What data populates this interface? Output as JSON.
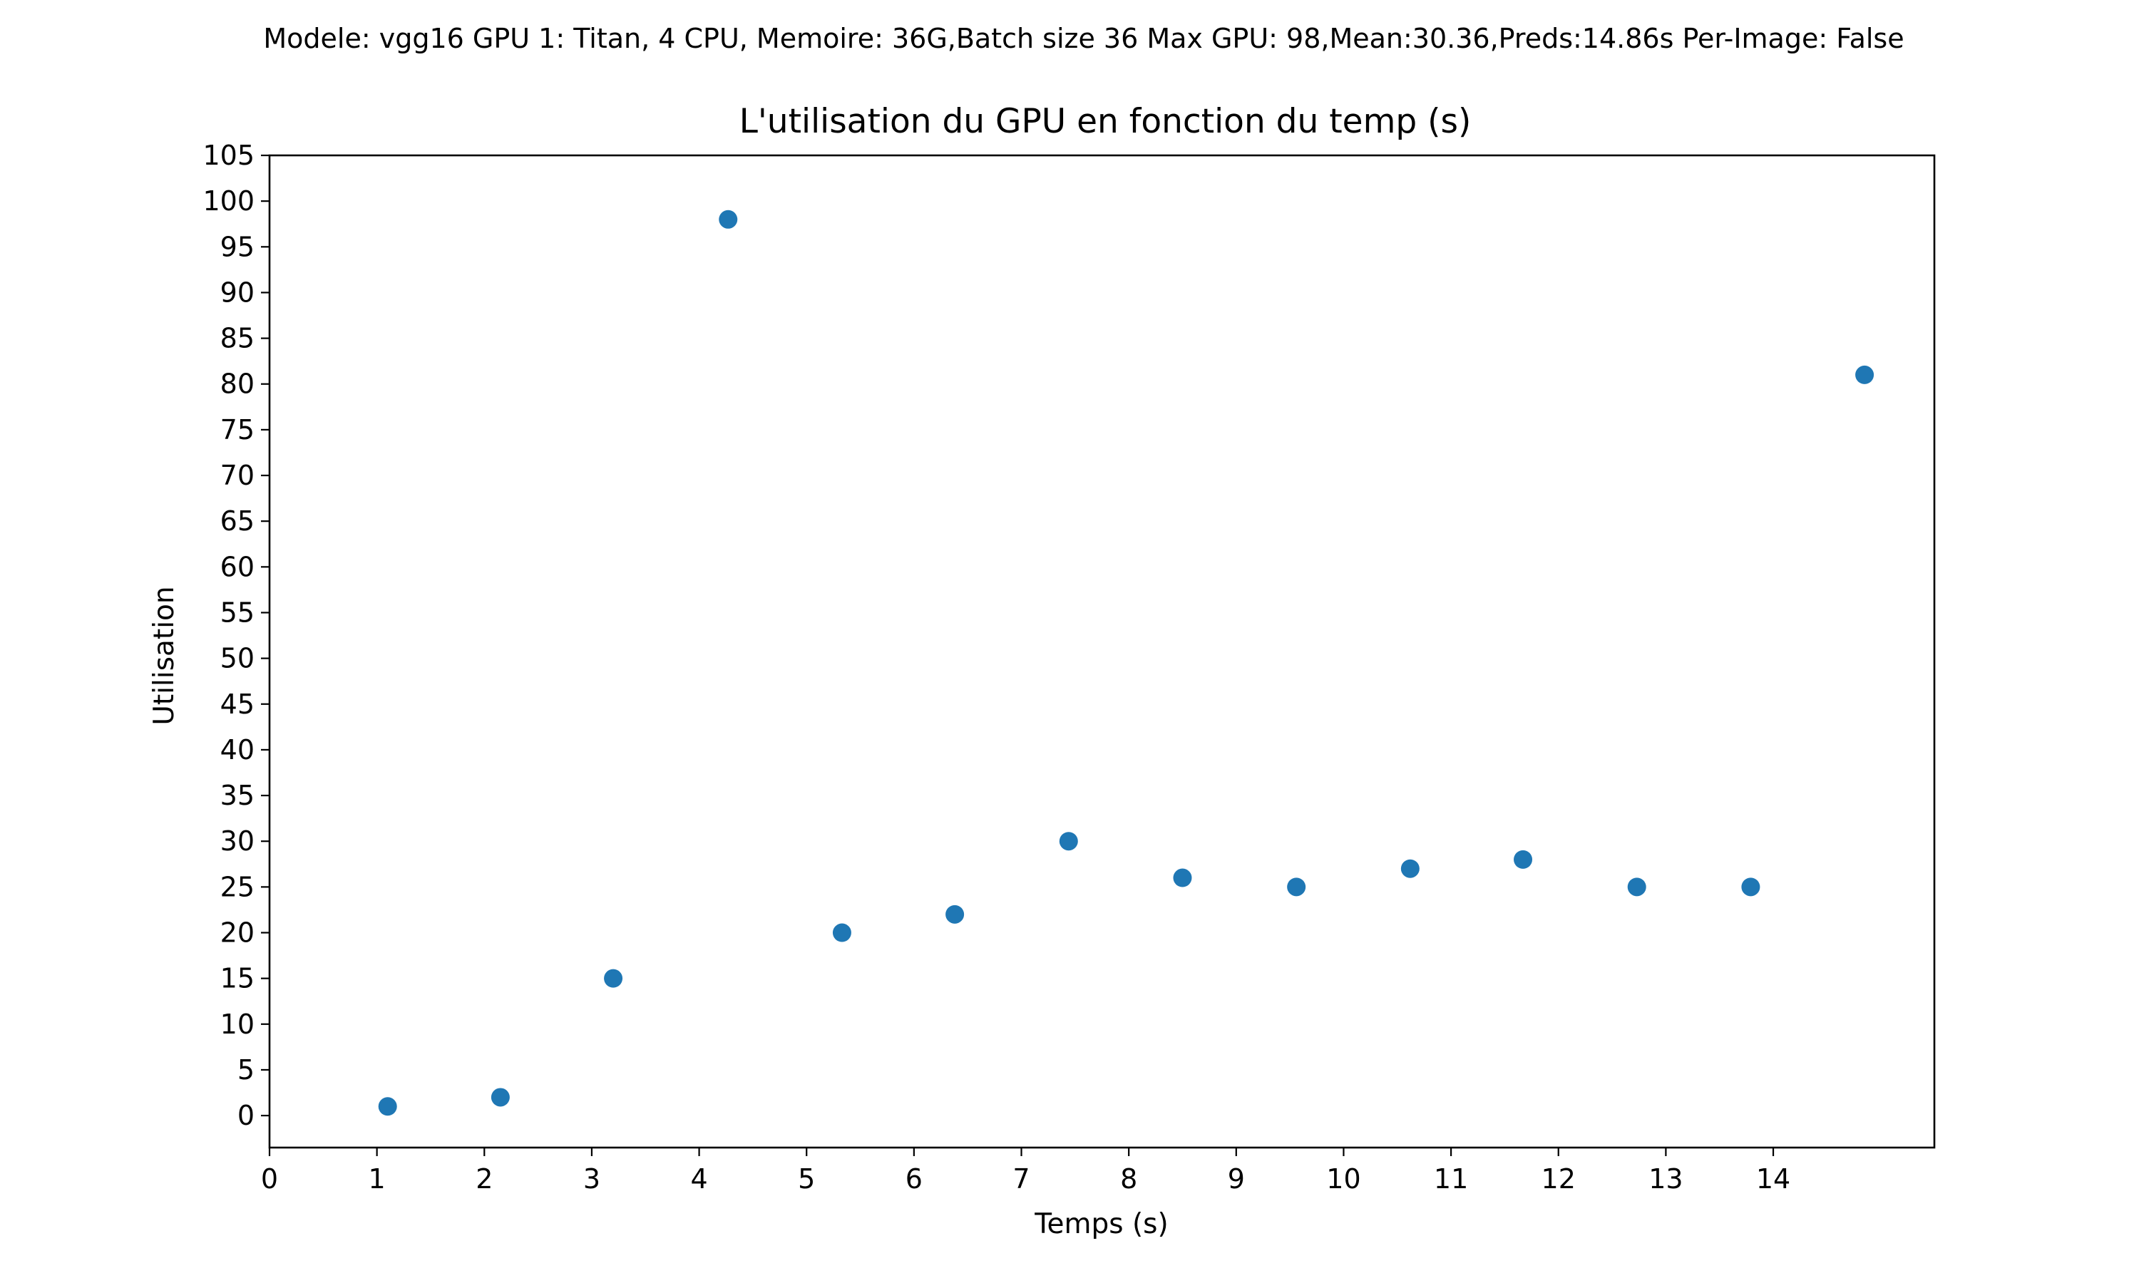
{
  "suptitle": "Modele: vgg16 GPU 1: Titan, 4 CPU, Memoire: 36G,Batch size 36 Max GPU: 98,Mean:30.36,Preds:14.86s Per-Image: False",
  "chart_data": {
    "type": "scatter",
    "title": "L'utilisation du GPU  en fonction du temp (s)",
    "xlabel": "Temps (s)",
    "ylabel": "Utilisation",
    "xlim": [
      0,
      15.5
    ],
    "ylim": [
      -3.5,
      105
    ],
    "xticks": [
      0,
      1,
      2,
      3,
      4,
      5,
      6,
      7,
      8,
      9,
      10,
      11,
      12,
      13,
      14
    ],
    "yticks": [
      0,
      5,
      10,
      15,
      20,
      25,
      30,
      35,
      40,
      45,
      50,
      55,
      60,
      65,
      70,
      75,
      80,
      85,
      90,
      95,
      100,
      105
    ],
    "grid": false,
    "color": "#1f77b4",
    "x": [
      1.1,
      2.15,
      3.2,
      4.27,
      5.33,
      6.38,
      7.44,
      8.5,
      9.56,
      10.62,
      11.67,
      12.73,
      13.79,
      14.85
    ],
    "y": [
      1,
      2,
      15,
      98,
      20,
      22,
      30,
      26,
      25,
      27,
      28,
      25,
      25,
      81
    ]
  }
}
